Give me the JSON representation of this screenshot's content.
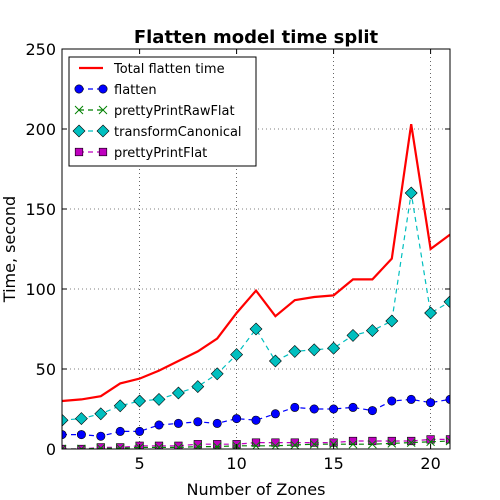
{
  "chart_data": {
    "type": "line",
    "title": "Flatten model time split",
    "xlabel": "Number of Zones",
    "ylabel": "Time, second",
    "xlim": [
      1,
      21
    ],
    "ylim": [
      0,
      250
    ],
    "xticks": [
      5,
      10,
      15,
      20
    ],
    "yticks": [
      0,
      50,
      100,
      150,
      200,
      250
    ],
    "grid": true,
    "legend_position": "top-left",
    "x": [
      1,
      2,
      3,
      4,
      5,
      6,
      7,
      8,
      9,
      10,
      11,
      12,
      13,
      14,
      15,
      16,
      17,
      18,
      19,
      20,
      21
    ],
    "series": [
      {
        "name": "Total flatten time",
        "style": "solid-line",
        "color": "#ff0000",
        "values": [
          30,
          31,
          33,
          41,
          44,
          49,
          55,
          61,
          69,
          85,
          99,
          83,
          93,
          95,
          96,
          106,
          106,
          119,
          203,
          125,
          134
        ]
      },
      {
        "name": "flatten",
        "style": "dashed-circle",
        "color": "#0000ff",
        "values": [
          9,
          9,
          8,
          11,
          11,
          15,
          16,
          17,
          16,
          19,
          18,
          22,
          26,
          25,
          25,
          26,
          24,
          30,
          31,
          29,
          31
        ]
      },
      {
        "name": "prettyPrintRawFlat",
        "style": "dashed-x",
        "color": "#008000",
        "values": [
          0,
          0,
          0.5,
          0.5,
          1,
          1,
          1,
          1.5,
          1.5,
          2,
          2,
          2,
          2.5,
          3,
          3,
          3,
          3,
          3.5,
          4,
          4.5,
          5
        ]
      },
      {
        "name": "transformCanonical",
        "style": "dashed-diamond",
        "color": "#00bfbf",
        "values": [
          18,
          19,
          22,
          27,
          30,
          31,
          35,
          39,
          47,
          59,
          75,
          55,
          61,
          62,
          63,
          71,
          74,
          80,
          160,
          85,
          92
        ]
      },
      {
        "name": "prettyPrintFlat",
        "style": "dashed-square",
        "color": "#bf00bf",
        "values": [
          0,
          0,
          1,
          1,
          2,
          2,
          2,
          3,
          3,
          3,
          4,
          4,
          4,
          4,
          4,
          5,
          5,
          5,
          5,
          6,
          6
        ]
      }
    ]
  }
}
